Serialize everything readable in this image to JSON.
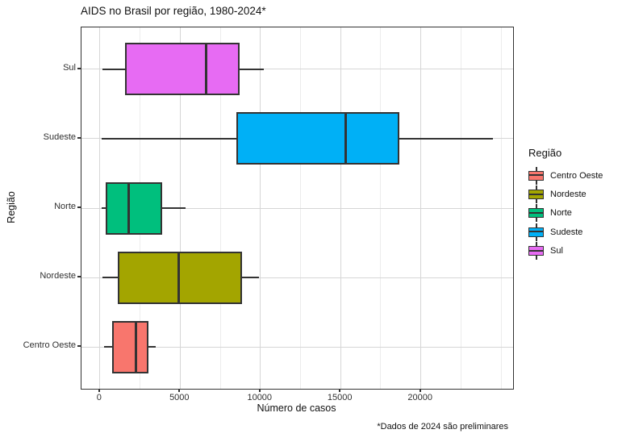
{
  "title": "AIDS no Brasil por região, 1980-2024*",
  "caption": "*Dados de 2024 são preliminares",
  "axes": {
    "x_title": "Número de casos",
    "y_title": "Região"
  },
  "legend": {
    "title": "Região",
    "items": [
      {
        "label": "Centro Oeste",
        "color": "#F8766D"
      },
      {
        "label": "Nordeste",
        "color": "#A3A500"
      },
      {
        "label": "Norte",
        "color": "#00BF7D"
      },
      {
        "label": "Sudeste",
        "color": "#00B0F6"
      },
      {
        "label": "Sul",
        "color": "#E76BF3"
      }
    ]
  },
  "colors": {
    "panel_border": "#333333",
    "box_stroke": "#333333",
    "grid_major": "#d6d6d6",
    "grid_minor": "#ececec"
  },
  "chart_data": {
    "type": "boxplot",
    "orientation": "horizontal",
    "title": "AIDS no Brasil por região, 1980-2024*",
    "xlabel": "Número de casos",
    "ylabel": "Região",
    "caption": "*Dados de 2024 são preliminares",
    "grid": true,
    "legend_position": "right",
    "xlim": [
      -1150,
      25750
    ],
    "x_ticks": [
      0,
      5000,
      10000,
      15000,
      20000
    ],
    "x_minor_ticks": [
      2500,
      7500,
      12500,
      17500,
      22500,
      25000
    ],
    "categories_bottom_to_top": [
      "Centro Oeste",
      "Nordeste",
      "Norte",
      "Sudeste",
      "Sul"
    ],
    "series": [
      {
        "name": "Centro Oeste",
        "color": "#F8766D",
        "min": 250,
        "q1": 760,
        "median": 2250,
        "q3": 3000,
        "max": 3500
      },
      {
        "name": "Nordeste",
        "color": "#A3A500",
        "min": 160,
        "q1": 1130,
        "median": 4900,
        "q3": 8860,
        "max": 9900
      },
      {
        "name": "Norte",
        "color": "#00BF7D",
        "min": 130,
        "q1": 350,
        "median": 1800,
        "q3": 3890,
        "max": 5330
      },
      {
        "name": "Sudeste",
        "color": "#00B0F6",
        "min": 100,
        "q1": 8500,
        "median": 15300,
        "q3": 18650,
        "max": 24500
      },
      {
        "name": "Sul",
        "color": "#E76BF3",
        "min": 150,
        "q1": 1550,
        "median": 6600,
        "q3": 8730,
        "max": 10200
      }
    ]
  }
}
